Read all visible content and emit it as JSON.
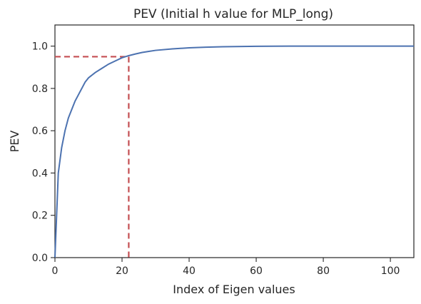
{
  "chart_data": {
    "type": "line",
    "title": "PEV (Initial h value for MLP_long)",
    "xlabel": "Index of Eigen values",
    "ylabel": "PEV",
    "xlim": [
      0,
      107
    ],
    "ylim": [
      0,
      1.1
    ],
    "xticks": [
      0,
      20,
      40,
      60,
      80,
      100
    ],
    "xtick_labels": [
      "0",
      "20",
      "40",
      "60",
      "80",
      "100"
    ],
    "yticks": [
      0.0,
      0.2,
      0.4,
      0.6,
      0.8,
      1.0
    ],
    "ytick_labels": [
      "0.0",
      "0.2",
      "0.4",
      "0.6",
      "0.8",
      "1.0"
    ],
    "grid": false,
    "series": [
      {
        "color": "#4c72b0",
        "x": [
          0,
          1,
          2,
          3,
          4,
          5,
          6,
          7,
          8,
          9,
          10,
          12,
          14,
          16,
          18,
          20,
          22,
          24,
          26,
          28,
          30,
          35,
          40,
          45,
          50,
          60,
          70,
          80,
          90,
          100,
          107
        ],
        "y": [
          0.0,
          0.4,
          0.52,
          0.6,
          0.66,
          0.7,
          0.74,
          0.77,
          0.8,
          0.83,
          0.85,
          0.875,
          0.895,
          0.915,
          0.93,
          0.945,
          0.955,
          0.963,
          0.97,
          0.975,
          0.98,
          0.987,
          0.992,
          0.995,
          0.997,
          0.999,
          1.0,
          1.0,
          1.0,
          1.0,
          1.0
        ]
      }
    ],
    "threshold": {
      "color": "#c44e52",
      "x": 22,
      "y": 0.95
    }
  }
}
